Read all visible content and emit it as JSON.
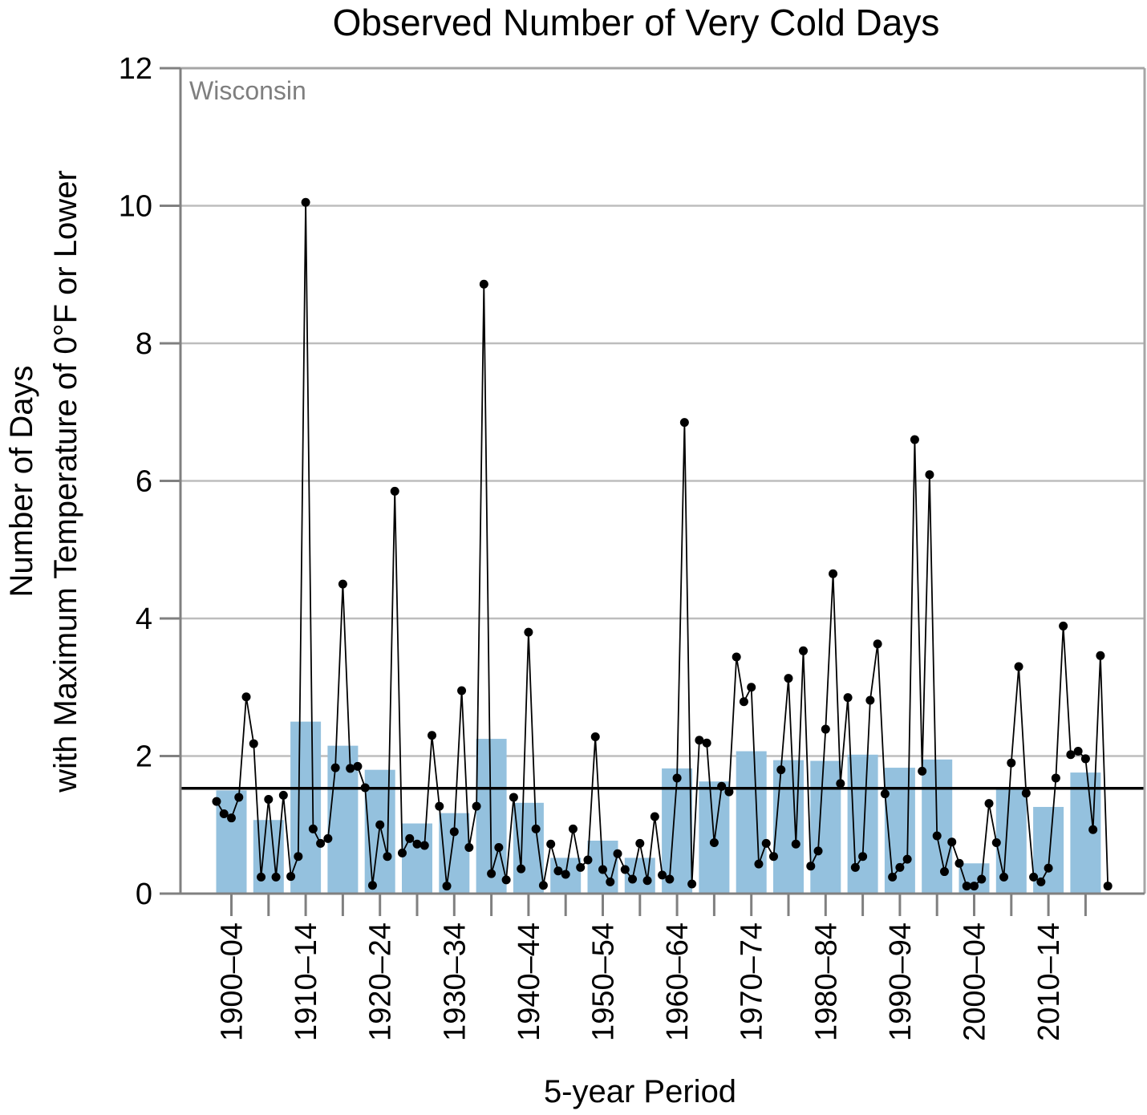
{
  "chart_data": {
    "type": "bar",
    "title": "Observed Number of Very Cold Days",
    "region": "Wisconsin",
    "xlabel": "5-year Period",
    "ylabel_lines": [
      "Number of Days",
      "with Maximum Temperature of 0°F or Lower"
    ],
    "ylim": [
      0,
      12
    ],
    "yticks": [
      0,
      2,
      4,
      6,
      8,
      10,
      12
    ],
    "grid": true,
    "categories": [
      "1900–04",
      "1905–09",
      "1910–14",
      "1915–19",
      "1920–24",
      "1925–29",
      "1930–34",
      "1935–39",
      "1940–44",
      "1945–49",
      "1950–54",
      "1955–59",
      "1960–64",
      "1965–69",
      "1970–74",
      "1975–79",
      "1980–84",
      "1985–89",
      "1990–94",
      "1995–99",
      "2000–04",
      "2005–09",
      "2010–14",
      "2015–20"
    ],
    "category_labels": [
      "1900–04",
      "",
      "1910–14",
      "",
      "1920–24",
      "",
      "1930–34",
      "",
      "1940–44",
      "",
      "1950–54",
      "",
      "1960–64",
      "",
      "1970–74",
      "",
      "1980–84",
      "",
      "1990–94",
      "",
      "2000–04",
      "",
      "2010–14",
      ""
    ],
    "bar_values": [
      1.5,
      1.07,
      2.5,
      2.15,
      1.8,
      1.02,
      1.17,
      2.25,
      1.32,
      0.52,
      0.77,
      0.52,
      1.82,
      1.63,
      2.07,
      1.94,
      1.93,
      2.02,
      1.83,
      1.95,
      0.44,
      1.53,
      1.26,
      1.76
    ],
    "long_term_average": 1.53,
    "annual": {
      "years": [
        1900,
        1901,
        1902,
        1903,
        1904,
        1905,
        1906,
        1907,
        1908,
        1909,
        1910,
        1911,
        1912,
        1913,
        1914,
        1915,
        1916,
        1917,
        1918,
        1919,
        1920,
        1921,
        1922,
        1923,
        1924,
        1925,
        1926,
        1927,
        1928,
        1929,
        1930,
        1931,
        1932,
        1933,
        1934,
        1935,
        1936,
        1937,
        1938,
        1939,
        1940,
        1941,
        1942,
        1943,
        1944,
        1945,
        1946,
        1947,
        1948,
        1949,
        1950,
        1951,
        1952,
        1953,
        1954,
        1955,
        1956,
        1957,
        1958,
        1959,
        1960,
        1961,
        1962,
        1963,
        1964,
        1965,
        1966,
        1967,
        1968,
        1969,
        1970,
        1971,
        1972,
        1973,
        1974,
        1975,
        1976,
        1977,
        1978,
        1979,
        1980,
        1981,
        1982,
        1983,
        1984,
        1985,
        1986,
        1987,
        1988,
        1989,
        1990,
        1991,
        1992,
        1993,
        1994,
        1995,
        1996,
        1997,
        1998,
        1999,
        2000,
        2001,
        2002,
        2003,
        2004,
        2005,
        2006,
        2007,
        2008,
        2009,
        2010,
        2011,
        2012,
        2013,
        2014,
        2015,
        2016,
        2017,
        2018,
        2019,
        2020
      ],
      "values": [
        1.34,
        1.16,
        1.1,
        1.4,
        2.86,
        2.18,
        0.24,
        1.37,
        0.24,
        1.43,
        0.25,
        0.54,
        10.05,
        0.94,
        0.73,
        0.8,
        1.83,
        4.5,
        1.82,
        1.85,
        1.54,
        0.12,
        1.0,
        0.54,
        5.85,
        0.59,
        0.8,
        0.72,
        0.7,
        2.3,
        1.27,
        0.11,
        0.9,
        2.95,
        0.67,
        1.27,
        8.86,
        0.29,
        0.67,
        0.2,
        1.4,
        0.36,
        3.8,
        0.94,
        0.12,
        0.72,
        0.33,
        0.28,
        0.94,
        0.38,
        0.49,
        2.28,
        0.35,
        0.17,
        0.58,
        0.35,
        0.21,
        0.73,
        0.19,
        1.12,
        0.27,
        0.21,
        1.68,
        6.85,
        0.14,
        2.23,
        2.19,
        0.74,
        1.56,
        1.48,
        3.44,
        2.79,
        3.0,
        0.43,
        0.73,
        0.54,
        1.8,
        3.13,
        0.72,
        3.53,
        0.4,
        0.62,
        2.39,
        4.65,
        1.6,
        2.85,
        0.38,
        0.54,
        2.81,
        3.63,
        1.45,
        0.24,
        0.38,
        0.5,
        6.6,
        1.78,
        6.09,
        0.84,
        0.32,
        0.75,
        0.44,
        0.11,
        0.11,
        0.21,
        1.31,
        0.74,
        0.24,
        1.9,
        3.3,
        1.46,
        0.24,
        0.17,
        0.37,
        1.68,
        3.89,
        2.02,
        2.07,
        1.96,
        0.93,
        3.46,
        0.11
      ]
    }
  }
}
